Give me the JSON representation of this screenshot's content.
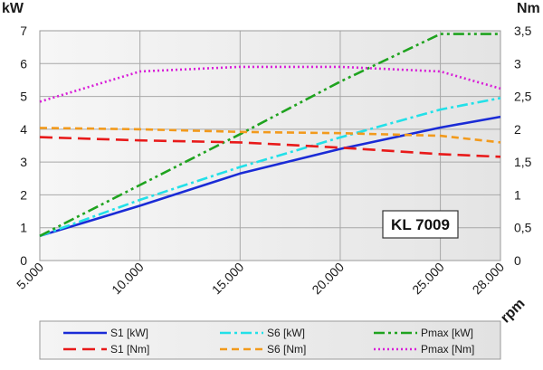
{
  "chart_data": {
    "type": "line",
    "model_label": "KL 7009",
    "x_label": "rpm",
    "y_left_label": "kW",
    "y_right_label": "Nm",
    "x": [
      5000,
      10000,
      15000,
      20000,
      25000,
      28000
    ],
    "x_tick_labels": [
      "5.000",
      "10.000",
      "15.000",
      "20.000",
      "25.000",
      "28.000"
    ],
    "y_left_ticks": [
      "0",
      "1",
      "2",
      "3",
      "4",
      "5",
      "6",
      "7"
    ],
    "y_right_ticks": [
      "0",
      "0,5",
      "1",
      "1,5",
      "2",
      "2,5",
      "3",
      "3,5"
    ],
    "ylim_left": [
      0,
      7
    ],
    "ylim_right": [
      0,
      3.5
    ],
    "xlim": [
      5000,
      28000
    ],
    "grid": true,
    "legend_position": "bottom",
    "series": [
      {
        "name": "S1 [kW]",
        "axis": "left",
        "color": "#1a2bd6",
        "dash": "solid",
        "x": [
          5000,
          10000,
          15000,
          20000,
          25000,
          28000
        ],
        "y": [
          0.75,
          1.67,
          2.65,
          3.4,
          4.05,
          4.38
        ]
      },
      {
        "name": "S6 [kW]",
        "axis": "left",
        "color": "#22e0e8",
        "dash": "dashdot",
        "x": [
          5000,
          10000,
          15000,
          20000,
          25000,
          28000
        ],
        "y": [
          0.75,
          1.85,
          2.85,
          3.75,
          4.6,
          4.95
        ]
      },
      {
        "name": "Pmax [kW]",
        "axis": "left",
        "color": "#1fa31f",
        "dash": "dashdotdot",
        "x": [
          5000,
          10000,
          15000,
          20000,
          25000,
          28000
        ],
        "y": [
          0.75,
          2.3,
          3.85,
          5.45,
          6.9,
          6.9
        ]
      },
      {
        "name": "S1 [Nm]",
        "axis": "right",
        "color": "#e81a1a",
        "dash": "longdash",
        "x": [
          5000,
          10000,
          15000,
          20000,
          25000,
          28000
        ],
        "y": [
          1.88,
          1.83,
          1.8,
          1.72,
          1.62,
          1.58
        ]
      },
      {
        "name": "S6 [Nm]",
        "axis": "right",
        "color": "#f29a1c",
        "dash": "shortdash",
        "x": [
          5000,
          10000,
          15000,
          20000,
          25000,
          28000
        ],
        "y": [
          2.02,
          2.0,
          1.96,
          1.94,
          1.9,
          1.8
        ]
      },
      {
        "name": "Pmax [Nm]",
        "axis": "right",
        "color": "#d81ed8",
        "dash": "dotted",
        "x": [
          5000,
          10000,
          15000,
          20000,
          25000,
          28000
        ],
        "y": [
          2.42,
          2.88,
          2.95,
          2.95,
          2.88,
          2.62
        ]
      }
    ]
  }
}
